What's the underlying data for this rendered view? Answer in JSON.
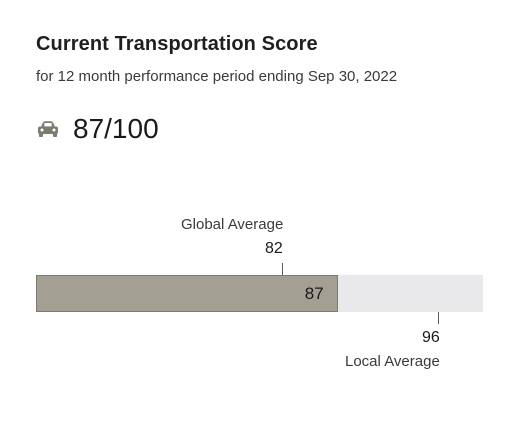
{
  "header": {
    "title": "Current Transportation Score",
    "subtitle": "for 12 month performance period ending Sep 30, 2022"
  },
  "score": {
    "icon": "car-icon",
    "text": "87/100",
    "value": 87,
    "max": 100
  },
  "bar": {
    "value": 87,
    "label": "87",
    "range": [
      0,
      100
    ],
    "fill_color": "#a39f92",
    "track_color": "#e9e9eb"
  },
  "global_average": {
    "label": "Global Average",
    "value": 82,
    "value_text": "82"
  },
  "local_average": {
    "label": "Local Average",
    "value": 96,
    "value_text": "96"
  }
}
